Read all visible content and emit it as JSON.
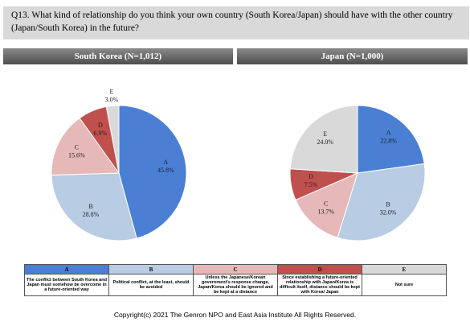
{
  "question": "Q13. What kind of relationship do you think your own country (South Korea/Japan) should have with the other country (Japan/South Korea) in the future?",
  "chart_data": [
    {
      "type": "pie",
      "title": "South Korea (N=1,012)",
      "categories": [
        "A",
        "B",
        "C",
        "D",
        "E"
      ],
      "values": [
        45.8,
        28.8,
        15.6,
        6.9,
        3.0
      ],
      "value_labels": [
        "45.8%",
        "28.8%",
        "15.6%",
        "6.9%",
        "3.0%"
      ],
      "colors": [
        "#4a7fd4",
        "#b8cce4",
        "#e6b9b8",
        "#c0504d",
        "#d9d9d9"
      ]
    },
    {
      "type": "pie",
      "title": "Japan (N=1,000)",
      "categories": [
        "A",
        "B",
        "C",
        "D",
        "E"
      ],
      "values": [
        22.8,
        32.0,
        13.7,
        7.5,
        24.0
      ],
      "value_labels": [
        "22.8%",
        "32.0%",
        "13.7%",
        "7.5%",
        "24.0%"
      ],
      "colors": [
        "#4a7fd4",
        "#b8cce4",
        "#e6b9b8",
        "#c0504d",
        "#d9d9d9"
      ]
    }
  ],
  "legend_table": {
    "headers": [
      "A",
      "B",
      "C",
      "D",
      "E"
    ],
    "descriptions": [
      "The conflict between South Korea and Japan must somehow be overcome in a future-oriented way",
      "Political conflict, at the least, should be avoided",
      "Unless the Japanese/Korean government's response change, Japan/Korea should be ignored and be kept at a distance",
      "Since establishing a future-oriented relationship with Japan/Korea is difficult itself, distance should be kept with Korea/ Japan",
      "Not sure"
    ]
  },
  "copyright": "Copyright(c) 2021 The Genron NPO and East Asia Institute All Rights Reserved."
}
